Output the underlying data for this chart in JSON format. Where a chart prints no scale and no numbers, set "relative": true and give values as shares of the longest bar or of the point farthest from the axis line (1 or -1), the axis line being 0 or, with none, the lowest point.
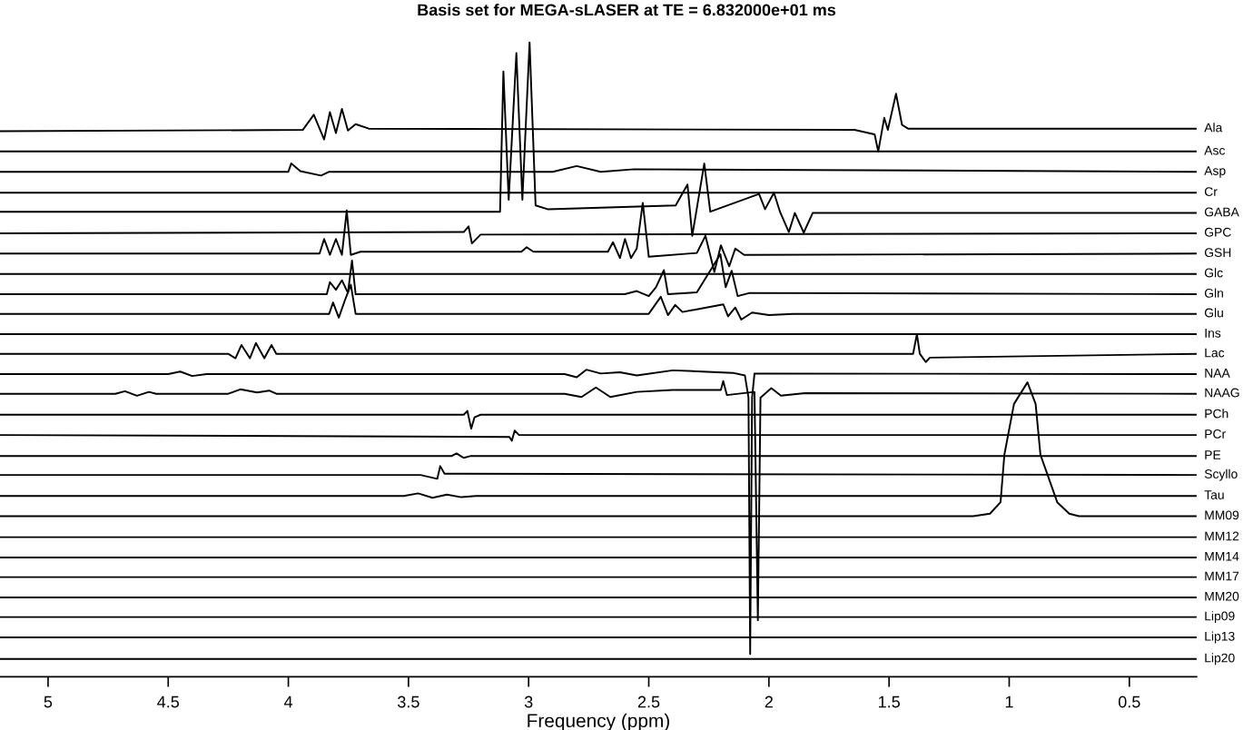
{
  "chart_data": {
    "type": "line",
    "relative": true,
    "title": "Basis set for MEGA-sLASER at TE = 6.832000e+01 ms",
    "xlabel": "Frequency (ppm)",
    "xlim": [
      5.2,
      0.22
    ],
    "xticks": [
      5,
      4.5,
      4,
      3.5,
      3,
      2.5,
      2,
      1.5,
      1,
      0.5
    ],
    "tick_labels": "x",
    "series": [
      {
        "name": "Ala",
        "color": "#000000",
        "x": [
          5.2,
          3.94,
          3.894,
          3.851,
          3.827,
          3.802,
          3.777,
          3.752,
          3.72,
          3.665,
          1.644,
          1.56,
          1.545,
          1.52,
          1.505,
          1.471,
          1.446,
          1.421,
          0.22
        ],
        "values": [
          0.86,
          0.862,
          0.886,
          0.847,
          0.89,
          0.857,
          0.895,
          0.861,
          0.871,
          0.864,
          0.862,
          0.855,
          0.828,
          0.881,
          0.862,
          0.919,
          0.87,
          0.864,
          0.864
        ]
      },
      {
        "name": "Asc",
        "color": "#000000",
        "x": [
          5.2,
          0.22
        ],
        "values": [
          0.828,
          0.828
        ]
      },
      {
        "name": "Asp",
        "color": "#000000",
        "x": [
          5.2,
          4.0,
          3.988,
          3.95,
          3.864,
          3.83,
          2.9,
          2.8,
          2.7,
          2.56,
          0.22
        ],
        "values": [
          0.796,
          0.796,
          0.809,
          0.797,
          0.79,
          0.796,
          0.796,
          0.805,
          0.796,
          0.8,
          0.796
        ]
      },
      {
        "name": "Cr",
        "color": "#000000",
        "x": [
          5.2,
          0.22
        ],
        "values": [
          0.763,
          0.763
        ]
      },
      {
        "name": "GABA",
        "color": "#000000",
        "x": [
          5.2,
          3.119,
          3.105,
          3.083,
          3.051,
          3.026,
          2.996,
          2.971,
          2.921,
          2.388,
          2.339,
          2.319,
          2.269,
          2.244,
          2.041,
          2.016,
          1.979,
          1.954,
          1.917,
          1.892,
          1.855,
          1.818,
          0.22
        ],
        "values": [
          0.733,
          0.733,
          0.954,
          0.752,
          0.983,
          0.752,
          1.0,
          0.743,
          0.737,
          0.743,
          0.776,
          0.695,
          0.809,
          0.733,
          0.761,
          0.737,
          0.763,
          0.733,
          0.701,
          0.731,
          0.7,
          0.731,
          0.731
        ]
      },
      {
        "name": "GPC",
        "color": "#000000",
        "x": [
          5.2,
          3.27,
          3.25,
          3.236,
          3.2,
          0.22
        ],
        "values": [
          0.699,
          0.701,
          0.71,
          0.683,
          0.697,
          0.699
        ]
      },
      {
        "name": "GSH",
        "color": "#000000",
        "x": [
          5.2,
          3.87,
          3.851,
          3.827,
          3.802,
          3.777,
          3.757,
          3.74,
          3.7,
          3.03,
          3.008,
          2.98,
          2.67,
          2.649,
          2.62,
          2.599,
          2.574,
          2.55,
          2.525,
          2.5,
          2.3,
          2.264,
          2.227,
          2.2,
          2.165,
          2.14,
          2.103,
          0.22
        ],
        "values": [
          0.667,
          0.667,
          0.69,
          0.665,
          0.69,
          0.665,
          0.735,
          0.665,
          0.67,
          0.67,
          0.677,
          0.67,
          0.67,
          0.685,
          0.66,
          0.69,
          0.66,
          0.675,
          0.747,
          0.662,
          0.668,
          0.695,
          0.638,
          0.68,
          0.647,
          0.675,
          0.665,
          0.667
        ]
      },
      {
        "name": "Glc",
        "color": "#000000",
        "x": [
          5.2,
          0.22
        ],
        "values": [
          0.635,
          0.635
        ]
      },
      {
        "name": "Gln",
        "color": "#000000",
        "x": [
          5.2,
          3.84,
          3.827,
          3.802,
          3.777,
          3.752,
          3.735,
          3.72,
          2.6,
          2.55,
          2.5,
          2.47,
          2.437,
          2.42,
          2.3,
          2.202,
          2.18,
          2.155,
          2.13,
          2.08,
          0.22
        ],
        "values": [
          0.603,
          0.603,
          0.622,
          0.61,
          0.625,
          0.605,
          0.656,
          0.603,
          0.603,
          0.608,
          0.6,
          0.614,
          0.641,
          0.603,
          0.606,
          0.666,
          0.614,
          0.64,
          0.6,
          0.605,
          0.603
        ]
      },
      {
        "name": "Glu",
        "color": "#000000",
        "x": [
          5.2,
          3.83,
          3.814,
          3.79,
          3.765,
          3.74,
          3.72,
          2.5,
          2.45,
          2.42,
          2.39,
          2.36,
          2.19,
          2.17,
          2.14,
          2.115,
          2.07,
          2.0,
          1.9,
          0.22
        ],
        "values": [
          0.572,
          0.572,
          0.59,
          0.566,
          0.593,
          0.618,
          0.572,
          0.572,
          0.599,
          0.57,
          0.586,
          0.575,
          0.587,
          0.568,
          0.582,
          0.563,
          0.574,
          0.57,
          0.572,
          0.572
        ]
      },
      {
        "name": "Ins",
        "color": "#000000",
        "x": [
          5.2,
          0.22
        ],
        "values": [
          0.54,
          0.54
        ]
      },
      {
        "name": "Lac",
        "color": "#000000",
        "x": [
          5.2,
          4.25,
          4.22,
          4.195,
          4.16,
          4.135,
          4.1,
          4.07,
          4.05,
          1.4,
          1.384,
          1.372,
          1.347,
          1.33,
          0.22
        ],
        "values": [
          0.509,
          0.509,
          0.502,
          0.523,
          0.502,
          0.526,
          0.502,
          0.523,
          0.509,
          0.509,
          0.54,
          0.509,
          0.496,
          0.503,
          0.509
        ]
      },
      {
        "name": "NAA",
        "color": "#000000",
        "x": [
          5.2,
          4.5,
          4.45,
          4.4,
          4.34,
          2.85,
          2.8,
          2.76,
          2.7,
          2.62,
          2.55,
          2.4,
          2.15,
          2.1,
          2.085,
          2.078,
          2.07,
          2.06,
          0.22
        ],
        "values": [
          0.477,
          0.477,
          0.481,
          0.474,
          0.477,
          0.477,
          0.472,
          0.484,
          0.478,
          0.48,
          0.475,
          0.483,
          0.479,
          0.475,
          0.44,
          0.036,
          0.44,
          0.478,
          0.477
        ]
      },
      {
        "name": "NAAG",
        "color": "#000000",
        "x": [
          5.2,
          4.72,
          4.68,
          4.63,
          4.58,
          4.55,
          4.25,
          4.2,
          4.13,
          4.08,
          4.05,
          2.85,
          2.78,
          2.72,
          2.66,
          2.55,
          2.4,
          2.2,
          2.19,
          2.175,
          2.06,
          2.046,
          2.035,
          1.99,
          1.95,
          1.85,
          0.22
        ],
        "values": [
          0.446,
          0.446,
          0.45,
          0.443,
          0.449,
          0.446,
          0.446,
          0.453,
          0.448,
          0.451,
          0.446,
          0.446,
          0.441,
          0.456,
          0.441,
          0.449,
          0.452,
          0.452,
          0.466,
          0.444,
          0.449,
          0.089,
          0.44,
          0.455,
          0.443,
          0.447,
          0.446
        ]
      },
      {
        "name": "PCh",
        "color": "#000000",
        "x": [
          5.2,
          3.27,
          3.255,
          3.239,
          3.225,
          3.2,
          0.22
        ],
        "values": [
          0.413,
          0.413,
          0.419,
          0.391,
          0.409,
          0.413,
          0.413
        ]
      },
      {
        "name": "PCr",
        "color": "#000000",
        "x": [
          5.2,
          3.08,
          3.07,
          3.058,
          3.04,
          0.22
        ],
        "values": [
          0.381,
          0.378,
          0.372,
          0.388,
          0.381,
          0.381
        ]
      },
      {
        "name": "PE",
        "color": "#000000",
        "x": [
          5.2,
          3.32,
          3.3,
          3.27,
          3.24,
          0.22
        ],
        "values": [
          0.348,
          0.348,
          0.352,
          0.345,
          0.348,
          0.348
        ]
      },
      {
        "name": "Scyllo",
        "color": "#000000",
        "x": [
          5.2,
          3.45,
          3.38,
          3.368,
          3.35,
          0.22
        ],
        "values": [
          0.318,
          0.318,
          0.312,
          0.332,
          0.32,
          0.318
        ]
      },
      {
        "name": "Tau",
        "color": "#000000",
        "x": [
          5.2,
          3.52,
          3.46,
          3.4,
          3.34,
          3.28,
          3.22,
          0.22
        ],
        "values": [
          0.285,
          0.285,
          0.289,
          0.282,
          0.287,
          0.283,
          0.285,
          0.285
        ]
      },
      {
        "name": "MM09",
        "color": "#000000",
        "x": [
          5.2,
          1.15,
          1.08,
          1.036,
          1.02,
          0.98,
          0.924,
          0.89,
          0.87,
          0.8,
          0.75,
          0.71,
          0.22
        ],
        "values": [
          0.253,
          0.253,
          0.257,
          0.275,
          0.35,
          0.43,
          0.464,
          0.43,
          0.35,
          0.275,
          0.257,
          0.253,
          0.253
        ]
      },
      {
        "name": "MM12",
        "color": "#000000",
        "x": [
          5.2,
          0.22
        ],
        "values": [
          0.22,
          0.22
        ]
      },
      {
        "name": "MM14",
        "color": "#000000",
        "x": [
          5.2,
          0.22
        ],
        "values": [
          0.188,
          0.188
        ]
      },
      {
        "name": "MM17",
        "color": "#000000",
        "x": [
          5.2,
          0.22
        ],
        "values": [
          0.157,
          0.157
        ]
      },
      {
        "name": "MM20",
        "color": "#000000",
        "x": [
          5.2,
          0.22
        ],
        "values": [
          0.125,
          0.125
        ]
      },
      {
        "name": "Lip09",
        "color": "#000000",
        "x": [
          5.2,
          0.22
        ],
        "values": [
          0.094,
          0.094
        ]
      },
      {
        "name": "Lip13",
        "color": "#000000",
        "x": [
          5.2,
          0.22
        ],
        "values": [
          0.062,
          0.062
        ]
      },
      {
        "name": "Lip20",
        "color": "#000000",
        "x": [
          5.2,
          0.22
        ],
        "values": [
          0.028,
          0.028
        ]
      }
    ]
  }
}
